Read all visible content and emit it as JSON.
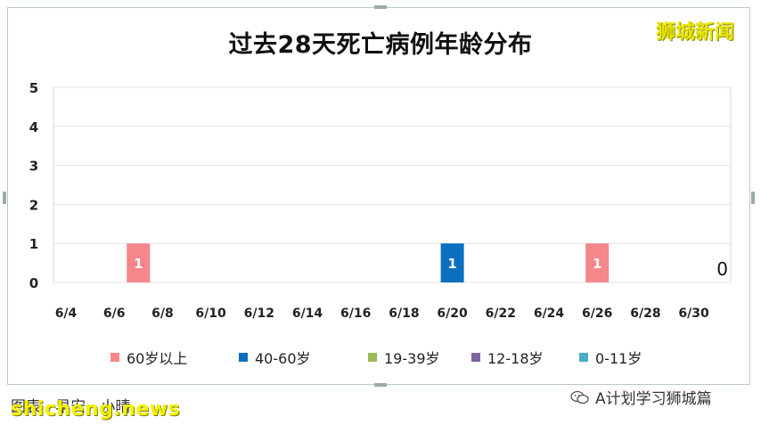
{
  "watermark_top": "狮城新闻",
  "watermark_bottom": "shicheng.news",
  "footer_left": "图表 · 早安 · 小晴",
  "wechat_account": "A计划学习狮城篇",
  "chart_data": {
    "type": "bar",
    "title": "过去28天死亡病例年龄分布",
    "xlabel": "",
    "ylabel": "",
    "ylim": [
      0,
      5
    ],
    "yticks": [
      0,
      1,
      2,
      3,
      4,
      5
    ],
    "xticks": [
      "6/4",
      "6/6",
      "6/8",
      "6/10",
      "6/12",
      "6/14",
      "6/16",
      "6/18",
      "6/20",
      "6/22",
      "6/24",
      "6/26",
      "6/28",
      "6/30"
    ],
    "legend_position": "bottom",
    "grid": true,
    "series": [
      {
        "name": "60岁以上",
        "color": "#f4868c",
        "points": [
          {
            "x": "6/7",
            "y": 1
          },
          {
            "x": "6/26",
            "y": 1
          }
        ]
      },
      {
        "name": "40-60岁",
        "color": "#0b6fbf",
        "points": [
          {
            "x": "6/20",
            "y": 1
          }
        ]
      },
      {
        "name": "19-39岁",
        "color": "#9bbb59",
        "points": []
      },
      {
        "name": "12-18岁",
        "color": "#8064a2",
        "points": []
      },
      {
        "name": "0-11岁",
        "color": "#4bacc6",
        "points": []
      }
    ],
    "annotations": [
      {
        "x": "6/30",
        "text": "0"
      }
    ]
  }
}
